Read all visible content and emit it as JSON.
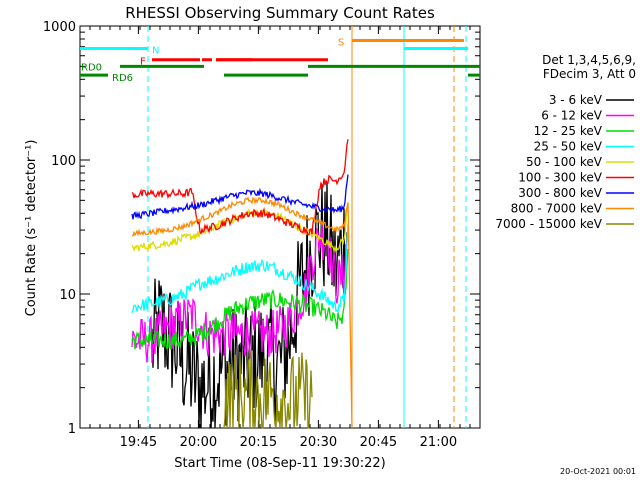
{
  "chart_data": {
    "type": "line",
    "title": "RHESSI Observing Summary Count Rates",
    "xlabel": "Start Time (08-Sep-11 19:30:22)",
    "ylabel": "Count Rate (s⁻¹ detector⁻¹)",
    "y_scale": "log",
    "ylim": [
      1,
      1000
    ],
    "xlim_minutes": [
      0,
      100
    ],
    "x_ticks": [
      {
        "label": "19:45",
        "t": 14.6
      },
      {
        "label": "20:00",
        "t": 29.6
      },
      {
        "label": "20:15",
        "t": 44.6
      },
      {
        "label": "20:30",
        "t": 59.6
      },
      {
        "label": "20:45",
        "t": 74.6
      },
      {
        "label": "21:00",
        "t": 89.6
      }
    ],
    "y_ticks": [
      {
        "label": "1",
        "v": 1
      },
      {
        "label": "10",
        "v": 10
      },
      {
        "label": "100",
        "v": 100
      },
      {
        "label": "1000",
        "v": 1000
      }
    ],
    "legend": {
      "placement": "right",
      "header": [
        "Det 1,3,4,5,6,9,",
        "FDecim 3, Att 0"
      ],
      "entries": [
        {
          "label": "3 - 6 keV",
          "color": "#000000"
        },
        {
          "label": "6 - 12 keV",
          "color": "#ff00ff"
        },
        {
          "label": "12 - 25 keV",
          "color": "#00dd00"
        },
        {
          "label": "25 - 50 keV",
          "color": "#00ffff"
        },
        {
          "label": "50 - 100 keV",
          "color": "#dddd00"
        },
        {
          "label": "100 - 300 keV",
          "color": "#ff0000"
        },
        {
          "label": "300 - 800 keV",
          "color": "#0000ff"
        },
        {
          "label": "800 - 7000 keV",
          "color": "#ff8800"
        },
        {
          "label": "7000 - 15000 keV",
          "color": "#888800"
        }
      ]
    },
    "flag_labels": {
      "N": "N",
      "F": "F",
      "S": "S",
      "RD0": "RD0",
      "RD6": "RD6"
    },
    "flag_bars": [
      {
        "label": "N",
        "color": "#00ffff",
        "v": 680,
        "segments": [
          [
            0,
            17
          ],
          [
            81,
            97
          ]
        ]
      },
      {
        "label": "F",
        "color": "#ff0000",
        "v": 560,
        "segments": [
          [
            18,
            30
          ],
          [
            30.5,
            33
          ],
          [
            34,
            43
          ],
          [
            34,
            62
          ]
        ]
      },
      {
        "label": "S",
        "color": "#ff8800",
        "v": 780,
        "segments": [
          [
            68,
            96
          ]
        ]
      },
      {
        "label": "RD0",
        "color": "#008800",
        "v": 500,
        "segments": [
          [
            10,
            31
          ],
          [
            57,
            100
          ]
        ]
      },
      {
        "label": "RD6",
        "color": "#008800",
        "v": 430,
        "segments": [
          [
            0,
            7
          ],
          [
            36,
            57
          ],
          [
            97,
            100
          ]
        ]
      }
    ],
    "vlines": [
      {
        "t": 17,
        "color": "#00ffff",
        "dash": true
      },
      {
        "t": 81,
        "color": "#00ffff",
        "dash": false
      },
      {
        "t": 68,
        "color": "#ff8800",
        "dash": false
      },
      {
        "t": 93.5,
        "color": "#ff8800",
        "dash": true
      },
      {
        "t": 96.5,
        "color": "#00ffff",
        "dash": true
      }
    ],
    "series": [
      {
        "name": "3 - 6 keV",
        "color": "#000000",
        "noise": 0.45,
        "points": [
          [
            18,
            4
          ],
          [
            20,
            6
          ],
          [
            22,
            5
          ],
          [
            24,
            4
          ],
          [
            26,
            3
          ],
          [
            28,
            2.5
          ],
          [
            30,
            2
          ],
          [
            32,
            2.2
          ],
          [
            34,
            2.5
          ],
          [
            38,
            3
          ],
          [
            42,
            3.2
          ],
          [
            46,
            3.5
          ],
          [
            50,
            3
          ],
          [
            52,
            4
          ],
          [
            54,
            8
          ],
          [
            56,
            15
          ],
          [
            58,
            22
          ],
          [
            60,
            28
          ],
          [
            62,
            25
          ],
          [
            64,
            15
          ],
          [
            66,
            25
          ],
          [
            67,
            30
          ]
        ]
      },
      {
        "name": "6 - 12 keV",
        "color": "#ff00ff",
        "noise": 0.18,
        "points": [
          [
            13,
            4.5
          ],
          [
            18,
            4.5
          ],
          [
            20,
            5
          ],
          [
            24,
            6
          ],
          [
            28,
            7
          ],
          [
            30,
            6
          ],
          [
            32,
            5
          ],
          [
            36,
            5
          ],
          [
            42,
            5
          ],
          [
            48,
            5
          ],
          [
            52,
            6
          ],
          [
            56,
            10
          ],
          [
            58,
            18
          ],
          [
            60,
            28
          ],
          [
            62,
            25
          ],
          [
            64,
            12
          ],
          [
            66,
            14
          ],
          [
            67,
            30
          ]
        ]
      },
      {
        "name": "12 - 25 keV",
        "color": "#00dd00",
        "noise": 0.07,
        "points": [
          [
            13,
            4.5
          ],
          [
            18,
            4.5
          ],
          [
            22,
            4.5
          ],
          [
            26,
            4.5
          ],
          [
            30,
            5
          ],
          [
            34,
            6
          ],
          [
            38,
            7.5
          ],
          [
            42,
            8.5
          ],
          [
            46,
            9
          ],
          [
            50,
            9
          ],
          [
            54,
            8.5
          ],
          [
            58,
            8
          ],
          [
            62,
            7
          ],
          [
            64,
            6
          ],
          [
            66,
            7
          ],
          [
            67,
            20
          ]
        ]
      },
      {
        "name": "25 - 50 keV",
        "color": "#00ffff",
        "noise": 0.05,
        "points": [
          [
            13,
            8
          ],
          [
            18,
            8.5
          ],
          [
            22,
            9
          ],
          [
            26,
            10
          ],
          [
            30,
            12
          ],
          [
            34,
            13
          ],
          [
            38,
            14.5
          ],
          [
            42,
            16
          ],
          [
            46,
            16.5
          ],
          [
            50,
            15
          ],
          [
            54,
            13
          ],
          [
            58,
            11
          ],
          [
            62,
            9
          ],
          [
            64,
            8
          ],
          [
            66,
            9
          ],
          [
            67,
            30
          ]
        ]
      },
      {
        "name": "50 - 100 keV",
        "color": "#dddd00",
        "noise": 0.03,
        "points": [
          [
            13,
            22
          ],
          [
            18,
            23
          ],
          [
            22,
            24
          ],
          [
            26,
            26
          ],
          [
            30,
            28
          ],
          [
            34,
            32
          ],
          [
            38,
            36
          ],
          [
            42,
            40
          ],
          [
            46,
            40
          ],
          [
            50,
            38
          ],
          [
            54,
            32
          ],
          [
            58,
            28
          ],
          [
            62,
            24
          ],
          [
            64,
            22
          ],
          [
            66,
            25
          ],
          [
            67,
            50
          ]
        ]
      },
      {
        "name": "100 - 300 keV",
        "color": "#ff0000",
        "noise": 0.03,
        "points": [
          [
            13,
            55
          ],
          [
            18,
            56
          ],
          [
            22,
            56
          ],
          [
            26,
            56
          ],
          [
            28,
            58
          ],
          [
            29,
            40
          ],
          [
            30,
            30
          ],
          [
            34,
            32
          ],
          [
            38,
            36
          ],
          [
            42,
            40
          ],
          [
            46,
            40
          ],
          [
            50,
            36
          ],
          [
            54,
            32
          ],
          [
            58,
            29
          ],
          [
            60,
            65
          ],
          [
            62,
            72
          ],
          [
            64,
            70
          ],
          [
            66,
            80
          ],
          [
            67,
            150
          ]
        ]
      },
      {
        "name": "300 - 800 keV",
        "color": "#0000ff",
        "noise": 0.025,
        "points": [
          [
            13,
            38
          ],
          [
            18,
            40
          ],
          [
            22,
            42
          ],
          [
            26,
            44
          ],
          [
            30,
            46
          ],
          [
            34,
            50
          ],
          [
            38,
            54
          ],
          [
            42,
            57
          ],
          [
            46,
            56
          ],
          [
            50,
            52
          ],
          [
            54,
            48
          ],
          [
            58,
            45
          ],
          [
            62,
            43
          ],
          [
            64,
            42
          ],
          [
            66,
            44
          ],
          [
            67,
            80
          ]
        ]
      },
      {
        "name": "800 - 7000 keV",
        "color": "#ff8800",
        "noise": 0.02,
        "points": [
          [
            13,
            28
          ],
          [
            18,
            29
          ],
          [
            22,
            30
          ],
          [
            26,
            32
          ],
          [
            30,
            36
          ],
          [
            34,
            40
          ],
          [
            38,
            46
          ],
          [
            42,
            50
          ],
          [
            46,
            50
          ],
          [
            50,
            46
          ],
          [
            54,
            40
          ],
          [
            58,
            36
          ],
          [
            62,
            32
          ],
          [
            64,
            30
          ],
          [
            66,
            32
          ],
          [
            67,
            50
          ],
          [
            68,
            1
          ]
        ]
      },
      {
        "name": "7000 - 15000 keV",
        "color": "#888800",
        "noise": 0.35,
        "points": [
          [
            36,
            1.6
          ],
          [
            40,
            1.8
          ],
          [
            44,
            1.7
          ],
          [
            48,
            1.8
          ],
          [
            52,
            1.6
          ],
          [
            56,
            1.7
          ],
          [
            58,
            1.5
          ]
        ]
      }
    ],
    "footer_date": "20-Oct-2021 00:01"
  }
}
